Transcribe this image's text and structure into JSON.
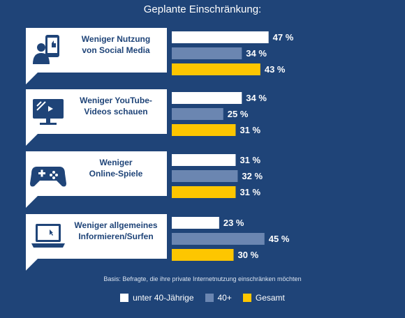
{
  "chart_data": {
    "type": "bar",
    "orientation": "horizontal",
    "title": "Geplante Einschränkung:",
    "categories": [
      "Weniger Nutzung\nvon Social Media",
      "Weniger YouTube-\nVideos schauen",
      "Weniger\nOnline-Spiele",
      "Weniger allgemeines\nInformieren/Surfen"
    ],
    "category_icons": [
      "social-media-user-icon",
      "video-screen-icon",
      "gamepad-icon",
      "laptop-icon"
    ],
    "series": [
      {
        "name": "unter 40-Jährige",
        "color": "#ffffff",
        "values": [
          47,
          34,
          31,
          23
        ]
      },
      {
        "name": "40+",
        "color": "#6b86b1",
        "values": [
          34,
          25,
          32,
          45
        ]
      },
      {
        "name": "Gesamt",
        "color": "#fdc600",
        "values": [
          43,
          31,
          31,
          30
        ]
      }
    ],
    "value_suffix": " %",
    "note": "Basis: Befragte, die ihre private Internetnutzung einschränken möchten",
    "legend_position": "bottom",
    "background_color": "#1f4478"
  }
}
